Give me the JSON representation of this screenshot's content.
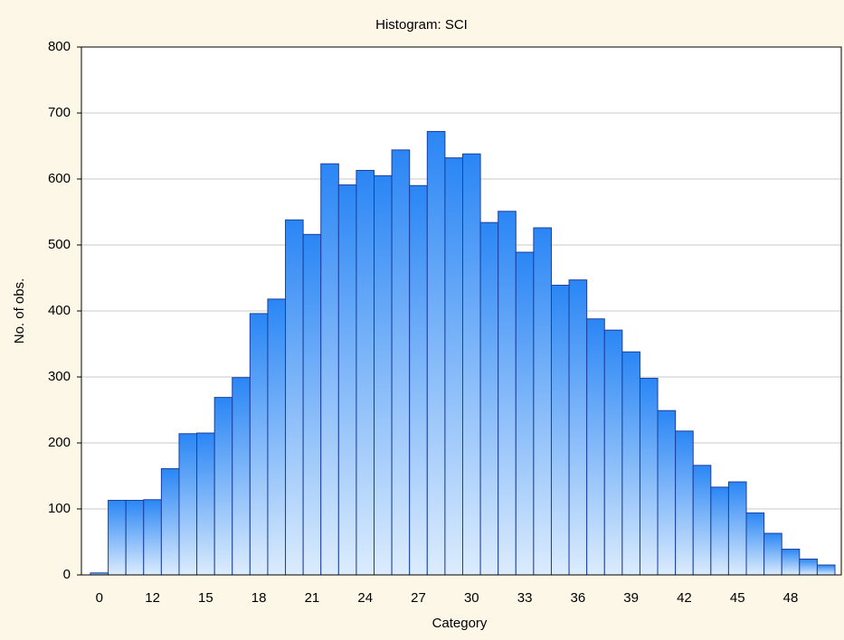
{
  "chart_data": {
    "type": "histogram",
    "title": "Histogram: SCI",
    "x_label": "Category",
    "y_label": "No. of obs.",
    "categories": [
      "0",
      null,
      null,
      "12",
      null,
      null,
      "15",
      null,
      null,
      "18",
      null,
      null,
      "21",
      null,
      null,
      "24",
      null,
      null,
      "27",
      null,
      null,
      "30",
      null,
      null,
      "33",
      null,
      null,
      "36",
      null,
      null,
      "39",
      null,
      null,
      "42",
      null,
      null,
      "45",
      null,
      null,
      "48",
      null,
      null
    ],
    "values": [
      3,
      113,
      113,
      114,
      161,
      214,
      215,
      269,
      299,
      396,
      418,
      538,
      516,
      623,
      591,
      613,
      605,
      644,
      590,
      672,
      632,
      638,
      534,
      551,
      489,
      526,
      439,
      447,
      388,
      371,
      338,
      298,
      249,
      218,
      166,
      133,
      141,
      94,
      63,
      39,
      24,
      15
    ],
    "color": "#2a86f5",
    "ylim": [
      0,
      800
    ],
    "yticks": [
      0,
      100,
      200,
      300,
      400,
      500,
      600,
      700,
      800
    ],
    "grid": true
  }
}
